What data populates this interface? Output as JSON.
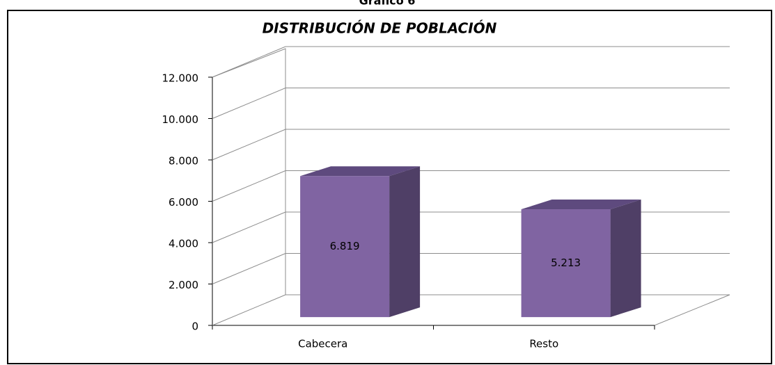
{
  "header": "Gráfico 6",
  "chart_data": {
    "type": "bar3d",
    "title": "DISTRIBUCIÓN DE POBLACIÓN",
    "categories": [
      "Cabecera",
      "Resto"
    ],
    "values": [
      6819,
      5213
    ],
    "value_labels": [
      "6.819",
      "5.213"
    ],
    "color": "#8064a2",
    "ylim": [
      0,
      12000
    ],
    "yticks": [
      {
        "value": 0,
        "label": "0"
      },
      {
        "value": 2000,
        "label": "2.000"
      },
      {
        "value": 4000,
        "label": "4.000"
      },
      {
        "value": 6000,
        "label": "6.000"
      },
      {
        "value": 8000,
        "label": "8.000"
      },
      {
        "value": 10000,
        "label": "10.000"
      },
      {
        "value": 12000,
        "label": "12.000"
      }
    ],
    "grid": true
  }
}
